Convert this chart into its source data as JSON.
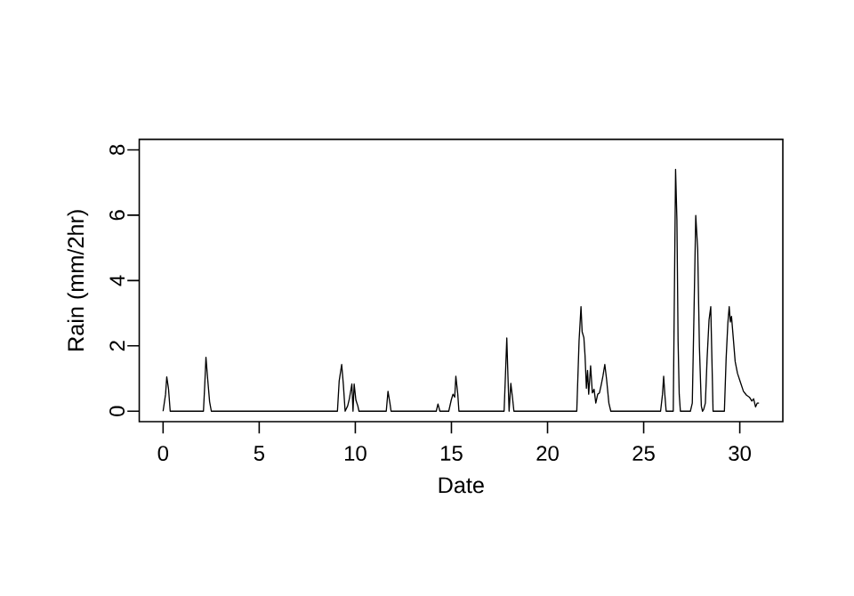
{
  "chart_data": {
    "type": "line",
    "xlabel": "Date",
    "ylabel": "Rain (mm/2hr)",
    "xlim": [
      -1.24,
      32.24
    ],
    "ylim": [
      -0.32,
      8.32
    ],
    "xticks": [
      0,
      5,
      10,
      15,
      20,
      25,
      30
    ],
    "yticks": [
      0,
      2,
      4,
      6,
      8
    ],
    "series": [
      {
        "color": "#000000",
        "x": [
          0.0,
          0.13,
          0.19,
          0.28,
          0.37,
          2.1,
          2.17,
          2.23,
          2.32,
          2.42,
          2.51,
          9.07,
          9.16,
          9.29,
          9.38,
          9.47,
          9.6,
          9.69,
          9.82,
          9.88,
          9.94,
          10.03,
          10.13,
          10.19,
          11.61,
          11.7,
          11.8,
          11.86,
          14.21,
          14.3,
          14.4,
          14.86,
          14.99,
          15.08,
          15.17,
          15.23,
          15.33,
          15.39,
          17.74,
          17.81,
          17.88,
          17.94,
          18.0,
          18.09,
          18.19,
          18.25,
          21.52,
          21.64,
          21.74,
          21.8,
          21.89,
          21.95,
          22.02,
          22.08,
          22.14,
          22.24,
          22.33,
          22.42,
          22.51,
          22.61,
          22.7,
          22.79,
          22.88,
          22.98,
          23.07,
          23.19,
          23.29,
          25.88,
          25.98,
          26.04,
          26.1,
          26.17,
          26.54,
          26.6,
          26.66,
          26.73,
          26.79,
          26.85,
          26.91,
          27.43,
          27.53,
          27.62,
          27.71,
          27.81,
          27.9,
          28.0,
          28.06,
          28.12,
          28.21,
          28.3,
          28.4,
          28.49,
          28.55,
          28.61,
          29.2,
          29.29,
          29.38,
          29.45,
          29.51,
          29.57,
          29.66,
          29.76,
          29.88,
          30.03,
          30.19,
          30.35,
          30.5,
          30.63,
          30.72,
          30.82,
          30.91,
          31.0
        ],
        "values": [
          0,
          0.52,
          1.05,
          0.7,
          0,
          0,
          0.83,
          1.65,
          0.98,
          0.29,
          0,
          0,
          0.92,
          1.43,
          0.8,
          0,
          0.16,
          0.38,
          0.83,
          0,
          0.83,
          0.34,
          0.16,
          0,
          0,
          0.61,
          0.25,
          0,
          0,
          0.22,
          0,
          0,
          0.34,
          0.52,
          0.43,
          1.07,
          0.52,
          0,
          0,
          1.1,
          2.24,
          1.07,
          0,
          0.85,
          0.34,
          0,
          0,
          2.16,
          3.2,
          2.43,
          2.25,
          1.7,
          0.7,
          1.25,
          0.52,
          1.39,
          0.56,
          0.67,
          0.25,
          0.52,
          0.56,
          0.8,
          1.07,
          1.43,
          0.98,
          0.25,
          0,
          0,
          0.52,
          1.07,
          0.52,
          0,
          0,
          3.7,
          7.4,
          5.86,
          2.16,
          0.52,
          0,
          0,
          0.25,
          3.06,
          5.99,
          4.96,
          1.97,
          0.16,
          0,
          0.05,
          0.25,
          1.61,
          2.79,
          3.2,
          1.61,
          0,
          0,
          1.61,
          2.7,
          3.2,
          2.73,
          2.9,
          2.25,
          1.52,
          1.16,
          0.89,
          0.61,
          0.49,
          0.43,
          0.31,
          0.38,
          0.13,
          0.25,
          0.25
        ]
      }
    ]
  }
}
